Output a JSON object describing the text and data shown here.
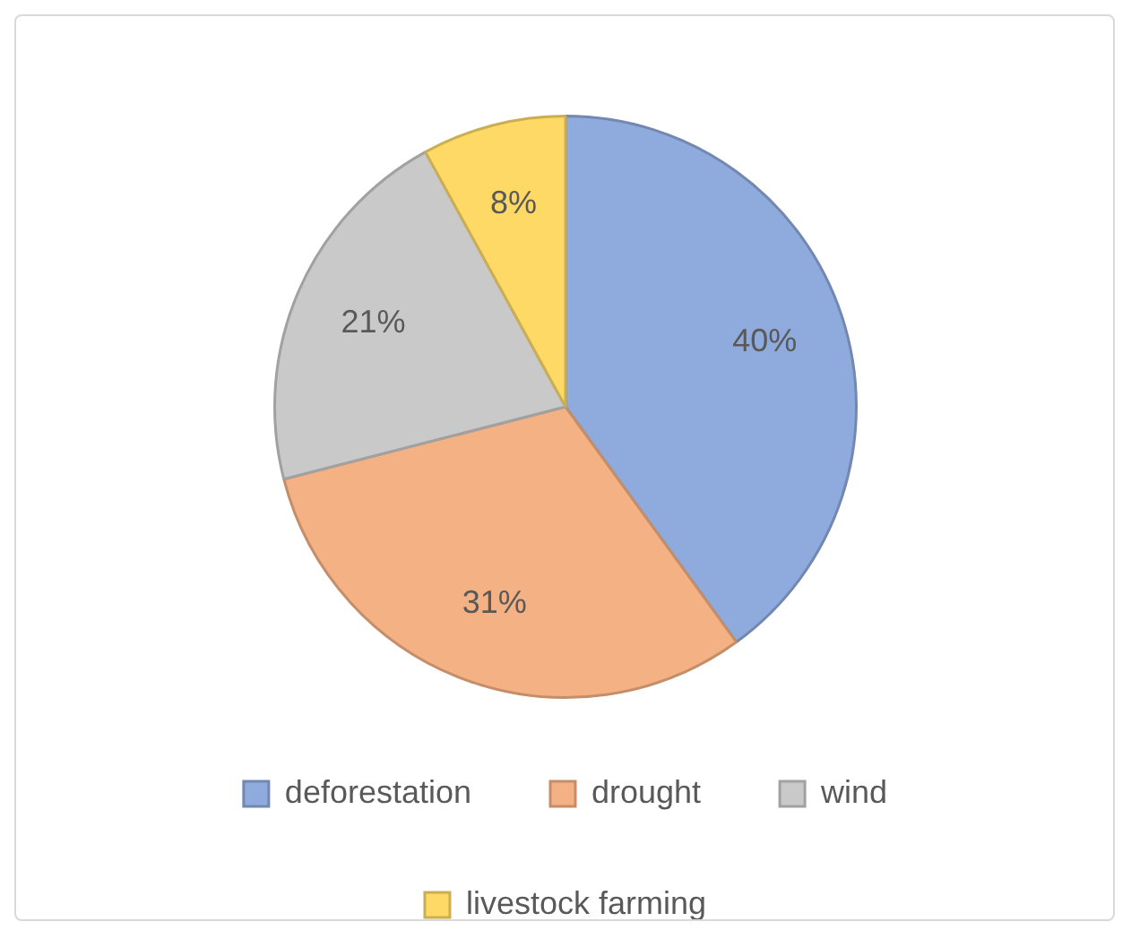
{
  "chart_data": {
    "type": "pie",
    "categories": [
      "deforestation",
      "drought",
      "wind",
      "livestock farming"
    ],
    "values": [
      40,
      31,
      21,
      8
    ],
    "colors": [
      "#8faadc",
      "#f4b183",
      "#c9c9c9",
      "#ffd966"
    ],
    "value_labels": [
      "40%",
      "31%",
      "21%",
      "8%"
    ],
    "legend": "bottom"
  }
}
